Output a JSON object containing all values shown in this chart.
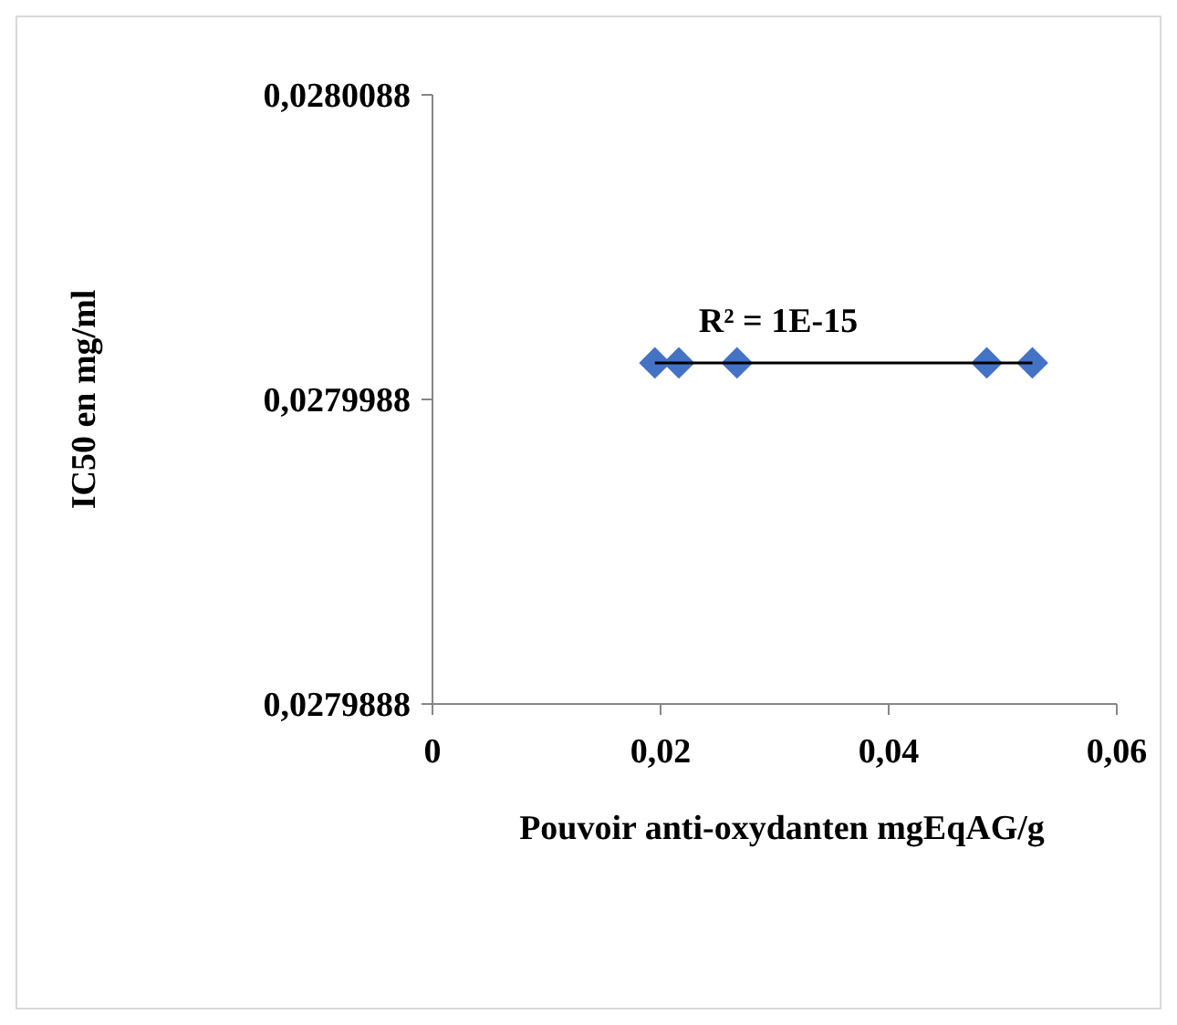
{
  "chart_data": {
    "type": "scatter",
    "xlabel": "Pouvoir anti-oxydanten  mgEqAG/g",
    "ylabel": "IC50 en mg/ml",
    "marker": "diamond",
    "grid": false,
    "series": [
      {
        "color": "#4472c4",
        "x": [
          0.0195,
          0.0216,
          0.0267,
          0.0486,
          0.0526
        ],
        "values": [
          0.028,
          0.028,
          0.028,
          0.028,
          0.028
        ]
      },
      {
        "type": "line",
        "color": "#000000",
        "marker": "none",
        "x": [
          0.0195,
          0.0526
        ],
        "values": [
          0.028,
          0.028
        ]
      }
    ],
    "xlim": [
      0,
      0.06
    ],
    "xticks": [
      0,
      {
        "value": 0.02,
        "label": "0,02"
      },
      {
        "value": 0.04,
        "label": "0,04"
      },
      {
        "value": 0.06,
        "label": "0,06"
      }
    ],
    "ylim": [
      0.0279888,
      0.0280088
    ],
    "yticks": [
      {
        "value": 0.0279888,
        "label": "0,0279888"
      },
      {
        "value": 0.0279988,
        "label": "0,0279988"
      },
      {
        "value": 0.0280088,
        "label": "0,0280088"
      }
    ],
    "annotations": [
      "R² = 1E-15"
    ]
  }
}
